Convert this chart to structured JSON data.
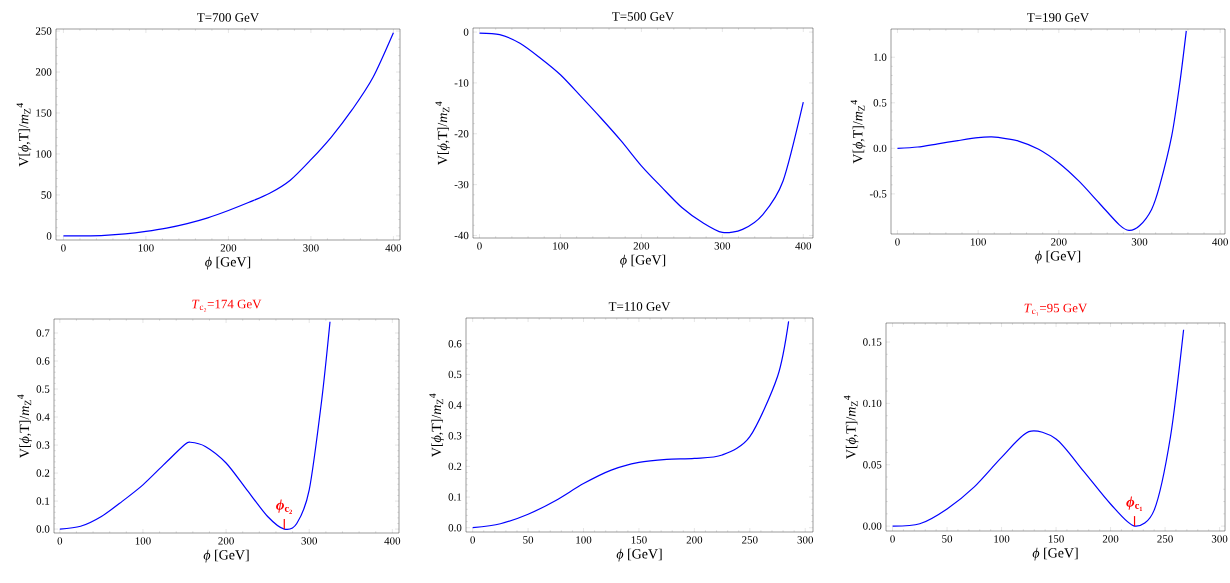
{
  "chart_data": [
    {
      "type": "line",
      "title": "T=700 GeV",
      "xlabel": "*ϕ* [GeV]",
      "ylabel": "V[*ϕ*,T]/*m*$_{Z}$$^{4}$",
      "color": "#0000ff",
      "xlim": [
        -9,
        408
      ],
      "ylim": [
        -5,
        252.5
      ],
      "xticks": [
        0,
        100,
        200,
        300,
        400
      ],
      "yticks": [
        0,
        50,
        100,
        150,
        200,
        250
      ],
      "x": [
        0,
        25,
        50,
        75,
        100,
        125,
        150,
        175,
        200,
        225,
        250,
        275,
        300,
        325,
        350,
        375,
        400
      ],
      "values": [
        0,
        0.1,
        0.7,
        2.5,
        5.5,
        9.5,
        15,
        22,
        31,
        41,
        52,
        68,
        93,
        121,
        154,
        193,
        248
      ]
    },
    {
      "type": "line",
      "title": "T=500 GeV",
      "xlabel": "*ϕ* [GeV]",
      "ylabel": "V[*ϕ*,T]/*m*$_{Z}$$^{4}$",
      "color": "#0000ff",
      "xlim": [
        -8,
        412
      ],
      "ylim": [
        -40.5,
        0.8
      ],
      "xticks": [
        0,
        100,
        200,
        300,
        400
      ],
      "yticks": [
        -40,
        -30,
        -20,
        -10,
        0
      ],
      "x": [
        0,
        25,
        50,
        75,
        100,
        125,
        150,
        175,
        200,
        225,
        250,
        275,
        300,
        325,
        350,
        375,
        400
      ],
      "values": [
        -0.2,
        -0.5,
        -2.2,
        -5.1,
        -8.4,
        -12.6,
        -16.9,
        -21.4,
        -26.3,
        -30.5,
        -34.5,
        -37.4,
        -39.4,
        -38.8,
        -35.9,
        -29.3,
        -13.8
      ]
    },
    {
      "type": "line",
      "title": "T=190 GeV",
      "xlabel": "*ϕ* [GeV]",
      "ylabel": "V[*ϕ*,T]/*m*$_{Z}$$^{4}$",
      "color": "#0000ff",
      "xlim": [
        -8,
        406
      ],
      "ylim": [
        -0.94,
        1.31
      ],
      "xticks": [
        0,
        100,
        200,
        300,
        400
      ],
      "yticks": [
        -0.5,
        {
          "value": 0,
          "label": "0.0"
        },
        0.5,
        {
          "value": 1,
          "label": "1.0"
        }
      ],
      "x": [
        0,
        25,
        50,
        75,
        100,
        115,
        125,
        150,
        175,
        200,
        225,
        250,
        275,
        287,
        300,
        315,
        325,
        340,
        350,
        358
      ],
      "values": [
        0,
        0.015,
        0.05,
        0.085,
        0.117,
        0.125,
        0.12,
        0.08,
        -0.01,
        -0.16,
        -0.36,
        -0.6,
        -0.84,
        -0.9,
        -0.85,
        -0.67,
        -0.41,
        0.14,
        0.72,
        1.29
      ]
    },
    {
      "type": "line",
      "title": "*T*$_{c₂}$=174 GeV",
      "xlabel": "*ϕ* [GeV]",
      "ylabel": "V[*ϕ*,T]/*m*$_{Z}$$^{4}$",
      "color": "#0000ff",
      "xlim": [
        -7,
        408
      ],
      "ylim": [
        -0.014,
        0.75
      ],
      "xticks": [
        0,
        100,
        200,
        300,
        400
      ],
      "yticks": [
        {
          "value": 0,
          "label": "0.0"
        },
        0.1,
        0.2,
        0.3,
        0.4,
        0.5,
        0.6,
        0.7
      ],
      "x": [
        0,
        25,
        50,
        75,
        100,
        125,
        150,
        157,
        175,
        200,
        225,
        250,
        270,
        285,
        300,
        315,
        325
      ],
      "values": [
        0,
        0.01,
        0.045,
        0.099,
        0.158,
        0.23,
        0.301,
        0.31,
        0.295,
        0.236,
        0.14,
        0.045,
        0,
        0.02,
        0.14,
        0.46,
        0.74
      ],
      "annotations": [
        {
          "text": "*ϕ*$_{c₂}$",
          "x": 270,
          "y": 0
        }
      ]
    },
    {
      "type": "line",
      "title": "T=110 GeV",
      "xlabel": "*ϕ* [GeV]",
      "ylabel": "V[*ϕ*,T]/*m*$_{Z}$$^{4}$",
      "color": "#0000ff",
      "xlim": [
        -6,
        307
      ],
      "ylim": [
        -0.014,
        0.684
      ],
      "xticks": [
        0,
        50,
        100,
        150,
        200,
        250,
        300
      ],
      "yticks": [
        {
          "value": 0,
          "label": "0.0"
        },
        0.1,
        0.2,
        0.3,
        0.4,
        0.5,
        0.6
      ],
      "x": [
        0,
        25,
        50,
        75,
        100,
        125,
        150,
        175,
        200,
        225,
        250,
        275,
        285
      ],
      "values": [
        0,
        0.013,
        0.044,
        0.089,
        0.144,
        0.188,
        0.213,
        0.223,
        0.226,
        0.237,
        0.297,
        0.493,
        0.673
      ]
    },
    {
      "type": "line",
      "title": "*T*$_{c₁}$=95 GeV",
      "xlabel": "*ϕ* [GeV]",
      "ylabel": "V[*ϕ*,T]/*m*$_{Z}$$^{4}$",
      "color": "#0000ff",
      "xlim": [
        -6,
        305
      ],
      "ylim": [
        -0.004,
        0.1655
      ],
      "xticks": [
        0,
        50,
        100,
        150,
        200,
        250,
        300
      ],
      "yticks": [
        {
          "value": 0,
          "label": "0.00"
        },
        0.05,
        {
          "value": 0.1,
          "label": "0.10"
        },
        0.15
      ],
      "x": [
        0,
        25,
        50,
        75,
        100,
        125,
        150,
        175,
        200,
        222,
        240,
        255,
        267
      ],
      "values": [
        0,
        0.0019,
        0.014,
        0.032,
        0.056,
        0.077,
        0.071,
        0.045,
        0.018,
        0,
        0.013,
        0.073,
        0.16
      ],
      "annotations": [
        {
          "text": "*ϕ*$_{c₁}$",
          "x": 222,
          "y": 0
        }
      ]
    }
  ]
}
